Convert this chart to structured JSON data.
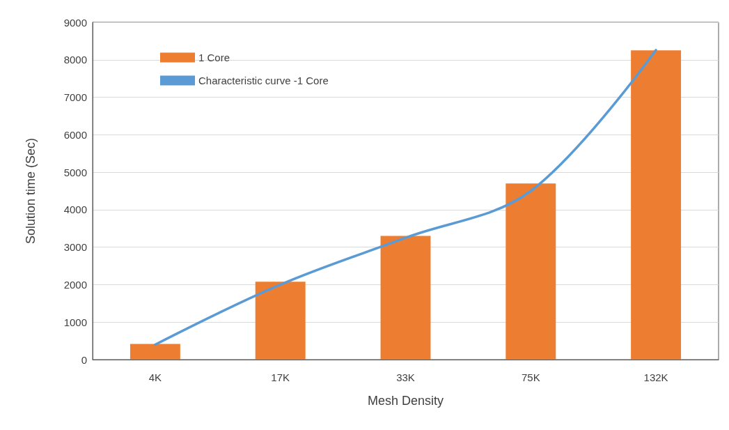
{
  "chart_data": {
    "type": "bar",
    "xlabel": "Mesh Density",
    "ylabel": "Solution time (Sec)",
    "categories": [
      "4K",
      "17K",
      "33K",
      "75K",
      "132K"
    ],
    "series": [
      {
        "name": "1 Core",
        "color": "#ed7d31",
        "values": [
          420,
          2080,
          3300,
          4700,
          8250
        ]
      },
      {
        "name": "Characteristic curve -1 Core",
        "type": "line",
        "color": "#5b9bd5",
        "values": [
          400,
          2000,
          3250,
          4500,
          8260
        ]
      }
    ],
    "ylim": [
      0,
      9000
    ],
    "yticks": [
      0,
      1000,
      2000,
      3000,
      4000,
      5000,
      6000,
      7000,
      8000,
      9000
    ],
    "grid": "y",
    "legend": "top left",
    "marker": "none"
  }
}
